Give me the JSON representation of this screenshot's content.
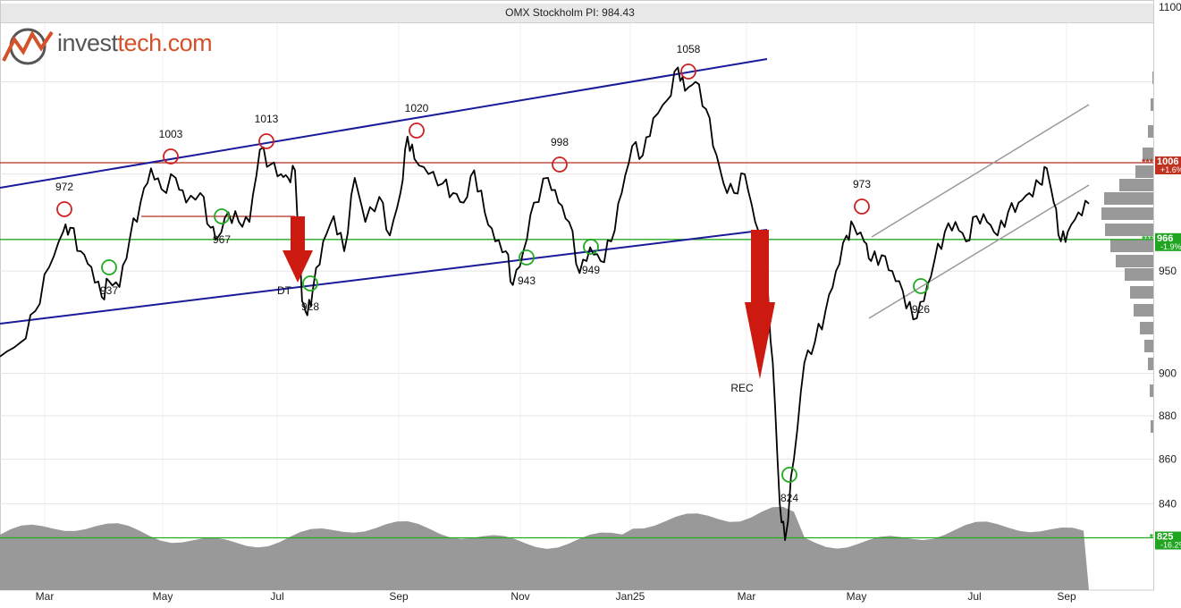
{
  "header": {
    "title": "OMX Stockholm PI: 984.43"
  },
  "logo": {
    "text_a": "invest",
    "text_b": "tech.com"
  },
  "colors": {
    "price": "#000000",
    "channel": "#1a1a9a",
    "channel_gray": "#9a9a9a",
    "resistance": "#b03020",
    "support": "#22aa22",
    "peak_circle": "#cc2222",
    "trough_circle": "#22aa22",
    "arrow": "#cc1a10",
    "volume": "#999999",
    "histogram": "#999999",
    "grid": "#e4e4e4"
  },
  "chart_data": {
    "type": "line",
    "title": "OMX Stockholm PI: 984.43",
    "last_value": 984.43,
    "y_scale": "log",
    "ylim": [
      800,
      1100
    ],
    "y_ticks": [
      "1100",
      "950",
      "900",
      "880",
      "860",
      "840"
    ],
    "x_ticks": [
      "Mar",
      "May",
      "Jul",
      "Sep",
      "Nov",
      "Jan25",
      "Mar",
      "May",
      "Jul",
      "Sep"
    ],
    "price_series": [
      [
        0.0,
        908
      ],
      [
        0.6,
        915
      ],
      [
        1.0,
        930
      ],
      [
        1.4,
        952
      ],
      [
        1.8,
        970
      ],
      [
        2.0,
        972
      ],
      [
        2.3,
        960
      ],
      [
        2.6,
        952
      ],
      [
        2.9,
        937
      ],
      [
        3.1,
        945
      ],
      [
        3.4,
        942
      ],
      [
        3.7,
        967
      ],
      [
        4.0,
        985
      ],
      [
        4.3,
        1003
      ],
      [
        4.6,
        992
      ],
      [
        5.0,
        998
      ],
      [
        5.3,
        985
      ],
      [
        5.7,
        990
      ],
      [
        6.0,
        972
      ],
      [
        6.2,
        967
      ],
      [
        6.5,
        980
      ],
      [
        6.8,
        975
      ],
      [
        7.1,
        975
      ],
      [
        7.4,
        1013
      ],
      [
        7.7,
        1005
      ],
      [
        8.0,
        1000
      ],
      [
        8.2,
        998
      ],
      [
        8.4,
        1002
      ],
      [
        8.6,
        935
      ],
      [
        8.75,
        928
      ],
      [
        8.9,
        940
      ],
      [
        9.2,
        965
      ],
      [
        9.5,
        978
      ],
      [
        9.8,
        960
      ],
      [
        10.1,
        998
      ],
      [
        10.4,
        975
      ],
      [
        10.8,
        988
      ],
      [
        11.1,
        968
      ],
      [
        11.4,
        990
      ],
      [
        11.6,
        1020
      ],
      [
        11.8,
        1008
      ],
      [
        12.2,
        1000
      ],
      [
        12.6,
        995
      ],
      [
        12.9,
        990
      ],
      [
        13.2,
        985
      ],
      [
        13.5,
        1002
      ],
      [
        13.8,
        980
      ],
      [
        14.1,
        965
      ],
      [
        14.4,
        960
      ],
      [
        14.6,
        943
      ],
      [
        14.9,
        960
      ],
      [
        15.2,
        985
      ],
      [
        15.6,
        998
      ],
      [
        15.9,
        985
      ],
      [
        16.2,
        975
      ],
      [
        16.5,
        949
      ],
      [
        16.8,
        962
      ],
      [
        17.1,
        955
      ],
      [
        17.4,
        965
      ],
      [
        17.7,
        990
      ],
      [
        18.0,
        1015
      ],
      [
        18.3,
        1010
      ],
      [
        18.6,
        1030
      ],
      [
        19.0,
        1040
      ],
      [
        19.3,
        1058
      ],
      [
        19.5,
        1045
      ],
      [
        19.8,
        1050
      ],
      [
        20.1,
        1035
      ],
      [
        20.4,
        1010
      ],
      [
        20.6,
        995
      ],
      [
        20.9,
        990
      ],
      [
        21.2,
        1000
      ],
      [
        21.5,
        975
      ],
      [
        21.8,
        950
      ],
      [
        22.0,
        905
      ],
      [
        22.2,
        840
      ],
      [
        22.35,
        824
      ],
      [
        22.6,
        860
      ],
      [
        22.9,
        905
      ],
      [
        23.2,
        915
      ],
      [
        23.5,
        930
      ],
      [
        23.8,
        950
      ],
      [
        24.1,
        968
      ],
      [
        24.3,
        973
      ],
      [
        24.6,
        965
      ],
      [
        24.8,
        955
      ],
      [
        25.1,
        958
      ],
      [
        25.4,
        950
      ],
      [
        25.7,
        940
      ],
      [
        26.0,
        926
      ],
      [
        26.3,
        935
      ],
      [
        26.6,
        955
      ],
      [
        26.9,
        970
      ],
      [
        27.2,
        975
      ],
      [
        27.5,
        965
      ],
      [
        27.8,
        978
      ],
      [
        28.1,
        975
      ],
      [
        28.4,
        968
      ],
      [
        28.7,
        980
      ],
      [
        29.0,
        985
      ],
      [
        29.3,
        990
      ],
      [
        29.6,
        995
      ],
      [
        29.8,
        1003
      ],
      [
        30.0,
        985
      ],
      [
        30.2,
        965
      ],
      [
        30.4,
        970
      ],
      [
        30.7,
        980
      ],
      [
        31.0,
        984.43
      ]
    ],
    "annotations": {
      "peaks": [
        {
          "x": 1.8,
          "y": 972,
          "label": "972"
        },
        {
          "x": 4.8,
          "y": 1003,
          "label": "1003"
        },
        {
          "x": 7.5,
          "y": 1013,
          "label": "1013"
        },
        {
          "x": 11.8,
          "y": 1020,
          "label": "1020"
        },
        {
          "x": 15.8,
          "y": 998,
          "label": "998"
        },
        {
          "x": 19.5,
          "y": 1058,
          "label": "1058"
        },
        {
          "x": 24.4,
          "y": 973,
          "label": "973"
        }
      ],
      "troughs": [
        {
          "x": 3.1,
          "y": 937,
          "label": "937"
        },
        {
          "x": 6.3,
          "y": 967,
          "label": "967"
        },
        {
          "x": 8.8,
          "y": 928,
          "label": "928"
        },
        {
          "x": 14.9,
          "y": 943,
          "label": "943"
        },
        {
          "x": 16.8,
          "y": 949,
          "label": "949"
        },
        {
          "x": 22.4,
          "y": 824,
          "label": "824"
        },
        {
          "x": 26.1,
          "y": 926,
          "label": "926"
        }
      ],
      "patterns": [
        {
          "x": 8.4,
          "y": 935,
          "label": "DT"
        },
        {
          "x": 21.0,
          "y": 900,
          "label": "REC"
        }
      ]
    },
    "levels": [
      {
        "value": 1006,
        "label": "***1006",
        "change": "+1.6%",
        "kind": "resistance"
      },
      {
        "value": 966,
        "label": "***966",
        "change": "-1.9%",
        "kind": "support"
      },
      {
        "value": 825,
        "label": "*825",
        "change": "-16.2%",
        "kind": "support"
      }
    ]
  }
}
